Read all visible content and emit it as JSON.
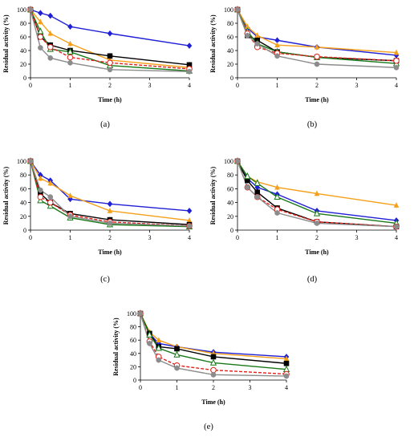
{
  "series_colors": {
    "blue": "#1f1fd6",
    "orange": "#f5a01a",
    "black": "#000000",
    "green": "#1a7a1a",
    "red": "#e0201a",
    "gray": "#8c8c8c"
  },
  "chart_data": [
    {
      "type": "line",
      "caption": "(a)",
      "xlabel": "Time (h)",
      "ylabel": "Residual activity (%)",
      "xlim": [
        0,
        4
      ],
      "ylim": [
        0,
        100
      ],
      "xticks": [
        0,
        1,
        2,
        3,
        4
      ],
      "yticks": [
        0,
        20,
        40,
        60,
        80,
        100
      ],
      "x": [
        0,
        0.25,
        0.5,
        1,
        2,
        4
      ],
      "series": [
        {
          "color": "blue",
          "marker": "diamond",
          "dash": false,
          "values": [
            100,
            95,
            91,
            75,
            65,
            47
          ]
        },
        {
          "color": "orange",
          "marker": "triangle",
          "dash": false,
          "values": [
            100,
            82,
            65,
            50,
            26,
            15
          ]
        },
        {
          "color": "black",
          "marker": "square",
          "dash": false,
          "values": [
            100,
            60,
            48,
            40,
            32,
            19
          ]
        },
        {
          "color": "green",
          "marker": "triangle-open",
          "dash": false,
          "values": [
            100,
            68,
            42,
            38,
            18,
            10
          ]
        },
        {
          "color": "red",
          "marker": "circle-open",
          "dash": true,
          "values": [
            100,
            60,
            45,
            30,
            22,
            13
          ]
        },
        {
          "color": "gray",
          "marker": "circle",
          "dash": false,
          "values": [
            100,
            44,
            29,
            22,
            12,
            9
          ]
        }
      ]
    },
    {
      "type": "line",
      "caption": "(b)",
      "xlabel": "Time (h)",
      "ylabel": "Residual activity (%)",
      "xlim": [
        0,
        4
      ],
      "ylim": [
        0,
        100
      ],
      "xticks": [
        0,
        1,
        2,
        3,
        4
      ],
      "yticks": [
        0,
        20,
        40,
        60,
        80,
        100
      ],
      "x": [
        0,
        0.25,
        0.5,
        1,
        2,
        4
      ],
      "series": [
        {
          "color": "blue",
          "marker": "diamond",
          "dash": false,
          "values": [
            100,
            73,
            60,
            55,
            45,
            33
          ]
        },
        {
          "color": "orange",
          "marker": "triangle",
          "dash": false,
          "values": [
            100,
            75,
            62,
            48,
            45,
            37
          ]
        },
        {
          "color": "black",
          "marker": "square",
          "dash": false,
          "values": [
            100,
            62,
            55,
            38,
            30,
            25
          ]
        },
        {
          "color": "green",
          "marker": "triangle-open",
          "dash": false,
          "values": [
            100,
            68,
            50,
            38,
            30,
            21
          ]
        },
        {
          "color": "red",
          "marker": "circle-open",
          "dash": true,
          "values": [
            100,
            65,
            45,
            36,
            31,
            25
          ]
        },
        {
          "color": "gray",
          "marker": "circle",
          "dash": false,
          "values": [
            100,
            62,
            50,
            32,
            20,
            15
          ]
        }
      ]
    },
    {
      "type": "line",
      "caption": "(c)",
      "xlabel": "Time (h)",
      "ylabel": "Residual activity (%)",
      "xlim": [
        0,
        4
      ],
      "ylim": [
        0,
        100
      ],
      "xticks": [
        0,
        1,
        2,
        3,
        4
      ],
      "yticks": [
        0,
        20,
        40,
        60,
        80,
        100
      ],
      "x": [
        0,
        0.25,
        0.5,
        1,
        2,
        4
      ],
      "series": [
        {
          "color": "blue",
          "marker": "diamond",
          "dash": false,
          "values": [
            100,
            80,
            72,
            45,
            38,
            28
          ]
        },
        {
          "color": "orange",
          "marker": "triangle",
          "dash": false,
          "values": [
            100,
            75,
            68,
            50,
            28,
            14
          ]
        },
        {
          "color": "black",
          "marker": "square",
          "dash": false,
          "values": [
            100,
            53,
            40,
            24,
            15,
            8
          ]
        },
        {
          "color": "green",
          "marker": "triangle-open",
          "dash": false,
          "values": [
            100,
            43,
            35,
            18,
            8,
            5
          ]
        },
        {
          "color": "red",
          "marker": "circle-open",
          "dash": true,
          "values": [
            100,
            48,
            40,
            22,
            12,
            6
          ]
        },
        {
          "color": "gray",
          "marker": "circle",
          "dash": false,
          "values": [
            100,
            58,
            48,
            20,
            10,
            6
          ]
        }
      ]
    },
    {
      "type": "line",
      "caption": "(d)",
      "xlabel": "Time (h)",
      "ylabel": "Residual activity (%)",
      "xlim": [
        0,
        4
      ],
      "ylim": [
        0,
        100
      ],
      "xticks": [
        0,
        1,
        2,
        3,
        4
      ],
      "yticks": [
        0,
        20,
        40,
        60,
        80,
        100
      ],
      "x": [
        0,
        0.25,
        0.5,
        1,
        2,
        4
      ],
      "series": [
        {
          "color": "blue",
          "marker": "diamond",
          "dash": false,
          "values": [
            100,
            75,
            62,
            52,
            28,
            14
          ]
        },
        {
          "color": "orange",
          "marker": "triangle",
          "dash": false,
          "values": [
            100,
            78,
            70,
            62,
            53,
            36
          ]
        },
        {
          "color": "black",
          "marker": "square",
          "dash": false,
          "values": [
            100,
            72,
            55,
            32,
            12,
            5
          ]
        },
        {
          "color": "green",
          "marker": "triangle-open",
          "dash": false,
          "values": [
            100,
            78,
            68,
            48,
            24,
            10
          ]
        },
        {
          "color": "red",
          "marker": "circle-open",
          "dash": true,
          "values": [
            100,
            62,
            48,
            30,
            12,
            5
          ]
        },
        {
          "color": "gray",
          "marker": "circle",
          "dash": false,
          "values": [
            100,
            62,
            48,
            25,
            10,
            5
          ]
        }
      ]
    },
    {
      "type": "line",
      "caption": "(e)",
      "xlabel": "Time (h)",
      "ylabel": "Residual activity (%)",
      "xlim": [
        0,
        4
      ],
      "ylim": [
        0,
        100
      ],
      "xticks": [
        0,
        1,
        2,
        3,
        4
      ],
      "yticks": [
        0,
        20,
        40,
        60,
        80,
        100
      ],
      "x": [
        0,
        0.25,
        0.5,
        1,
        2,
        4
      ],
      "series": [
        {
          "color": "blue",
          "marker": "diamond",
          "dash": false,
          "values": [
            100,
            70,
            55,
            50,
            42,
            35
          ]
        },
        {
          "color": "orange",
          "marker": "triangle",
          "dash": false,
          "values": [
            100,
            72,
            60,
            50,
            40,
            32
          ]
        },
        {
          "color": "black",
          "marker": "square",
          "dash": false,
          "values": [
            100,
            70,
            50,
            47,
            35,
            25
          ]
        },
        {
          "color": "green",
          "marker": "triangle-open",
          "dash": false,
          "values": [
            100,
            68,
            48,
            38,
            26,
            16
          ]
        },
        {
          "color": "red",
          "marker": "circle-open",
          "dash": true,
          "values": [
            100,
            58,
            35,
            22,
            15,
            9
          ]
        },
        {
          "color": "gray",
          "marker": "circle",
          "dash": false,
          "values": [
            100,
            55,
            30,
            18,
            8,
            6
          ]
        }
      ]
    }
  ]
}
